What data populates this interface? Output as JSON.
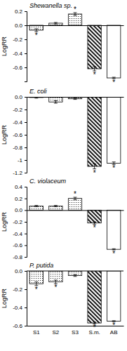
{
  "chart_data": [
    {
      "type": "bar",
      "title": "Shewanella sp.",
      "y_label": "LogRR",
      "categories": [
        "S1",
        "S2",
        "S3",
        "S.m.",
        "AB"
      ],
      "values": [
        -0.07,
        0.03,
        0.16,
        -0.62,
        -0.75
      ],
      "errors": [
        0.02,
        0.01,
        0.02,
        0.03,
        0.01
      ],
      "annotations": [
        "*",
        null,
        "*",
        "*",
        "*"
      ],
      "ylim": [
        -0.8,
        0.2
      ],
      "yticks": [
        0.2,
        {
          "value": 0,
          "label": "0.0"
        },
        -0.2,
        -0.4,
        -0.6
      ],
      "tick_labels": "y",
      "color": "#000000"
    },
    {
      "type": "bar",
      "title": "E. coli",
      "y_label": "LogRR",
      "categories": [
        "S1",
        "S2",
        "S3",
        "S.m.",
        "AB"
      ],
      "values": [
        -0.01,
        -0.08,
        -0.03,
        -1.1,
        -1.05
      ],
      "errors": [
        0.01,
        0.02,
        0.01,
        0.04,
        0.02
      ],
      "annotations": [
        null,
        null,
        null,
        "*",
        "*"
      ],
      "ylim": [
        -1.2,
        0
      ],
      "yticks": [
        {
          "value": 0,
          "label": "0.0"
        },
        -0.2,
        -0.4,
        -0.6,
        -0.8,
        -1.0,
        -1.2
      ],
      "tick_labels": "y",
      "color": "#000000"
    },
    {
      "type": "bar",
      "title": "C. violaceum",
      "y_label": "LogRR",
      "categories": [
        "S1",
        "S2",
        "S3",
        "S.m.",
        "AB"
      ],
      "values": [
        0.07,
        0.07,
        0.2,
        -0.22,
        -0.67
      ],
      "errors": [
        0.01,
        0.01,
        0.02,
        0.02,
        0.01
      ],
      "annotations": [
        null,
        null,
        "*",
        "*",
        "*"
      ],
      "ylim": [
        -0.8,
        0.4
      ],
      "yticks": [
        0.4,
        0.2,
        {
          "value": 0,
          "label": "0.0"
        },
        -0.2,
        -0.4,
        -0.6,
        -0.8
      ],
      "tick_labels": "y",
      "color": "#000000"
    },
    {
      "type": "bar",
      "title": "P. putida",
      "y_label": "LogRR",
      "categories": [
        "S1",
        "S2",
        "S3",
        "S.m.",
        "AB"
      ],
      "values": [
        -0.14,
        -0.12,
        -0.05,
        -0.57,
        -0.55
      ],
      "errors": [
        0.02,
        0.02,
        0.01,
        0.01,
        0.005
      ],
      "annotations": [
        "*",
        "*",
        null,
        "*",
        "*"
      ],
      "ylim": [
        -0.6,
        0
      ],
      "yticks": [
        {
          "value": 0,
          "label": "0.0"
        },
        -0.2,
        -0.4,
        -0.6
      ],
      "color": "#000000"
    }
  ]
}
